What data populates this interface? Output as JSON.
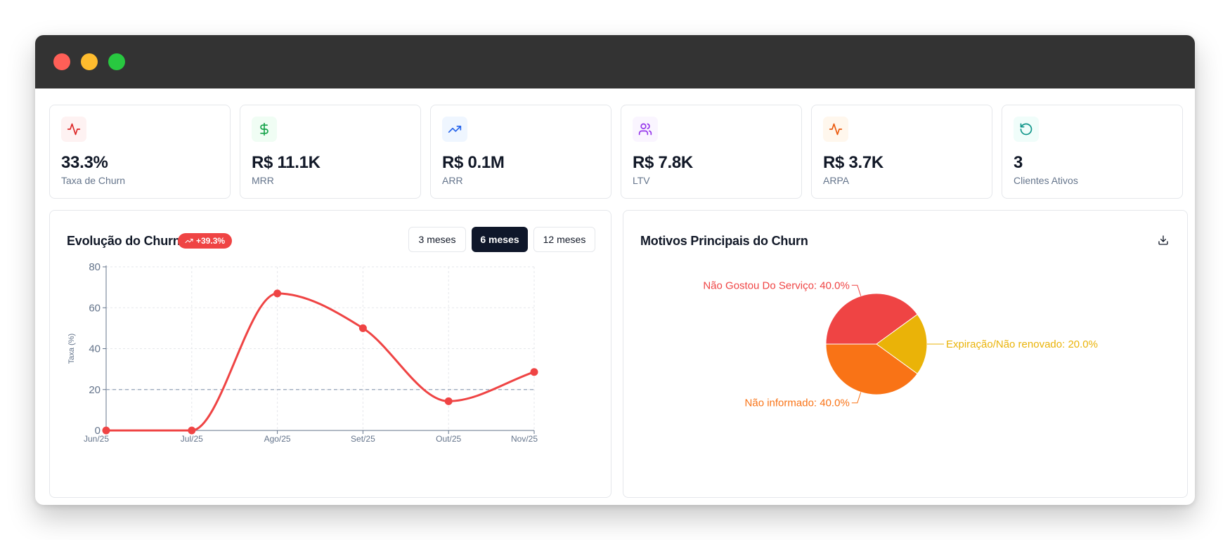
{
  "kpis": [
    {
      "value": "33.3%",
      "label": "Taxa de Churn",
      "icon": "activity-icon",
      "color": "#dc2626",
      "bg": "#fef2f2"
    },
    {
      "value": "R$ 11.1K",
      "label": "MRR",
      "icon": "dollar-sign-icon",
      "color": "#16a34a",
      "bg": "#f0fdf4"
    },
    {
      "value": "R$ 0.1M",
      "label": "ARR",
      "icon": "trending-up-icon",
      "color": "#2563eb",
      "bg": "#eff6ff"
    },
    {
      "value": "R$ 7.8K",
      "label": "LTV",
      "icon": "users-icon",
      "color": "#9333ea",
      "bg": "#faf5ff"
    },
    {
      "value": "R$ 3.7K",
      "label": "ARPA",
      "icon": "activity-icon",
      "color": "#ea580c",
      "bg": "#fff7ed"
    },
    {
      "value": "3",
      "label": "Clientes Ativos",
      "icon": "refresh-icon",
      "color": "#0d9488",
      "bg": "#f0fdfa"
    }
  ],
  "churn_panel": {
    "title": "Evolução do Churn",
    "badge": "+39.3%",
    "ranges": [
      "3 meses",
      "6 meses",
      "12 meses"
    ],
    "active_range": "6 meses"
  },
  "reasons_panel": {
    "title": "Motivos Principais do Churn"
  },
  "chart_data": [
    {
      "type": "line",
      "x": [
        "Jun/25",
        "Jul/25",
        "Ago/25",
        "Set/25",
        "Out/25",
        "Nov/25"
      ],
      "series": [
        {
          "values": [
            0,
            0,
            67,
            50,
            14.3,
            28.6
          ],
          "color": "#ef4444"
        }
      ],
      "ylabel": "Taxa (%)",
      "ylim": [
        0,
        80
      ],
      "yticks": [
        0,
        20,
        40,
        60,
        80
      ],
      "reference_line": 20,
      "grid": true
    },
    {
      "type": "pie",
      "slices": [
        {
          "label": "Não Gostou Do Serviço",
          "value": 40.0,
          "display": "Não Gostou Do Serviço: 40.0%",
          "color": "#ef4444"
        },
        {
          "label": "Expiração/Não renovado",
          "value": 20.0,
          "display": "Expiração/Não renovado: 20.0%",
          "color": "#eab308"
        },
        {
          "label": "Não informado",
          "value": 40.0,
          "display": "Não informado: 40.0%",
          "color": "#f97316"
        }
      ]
    }
  ]
}
